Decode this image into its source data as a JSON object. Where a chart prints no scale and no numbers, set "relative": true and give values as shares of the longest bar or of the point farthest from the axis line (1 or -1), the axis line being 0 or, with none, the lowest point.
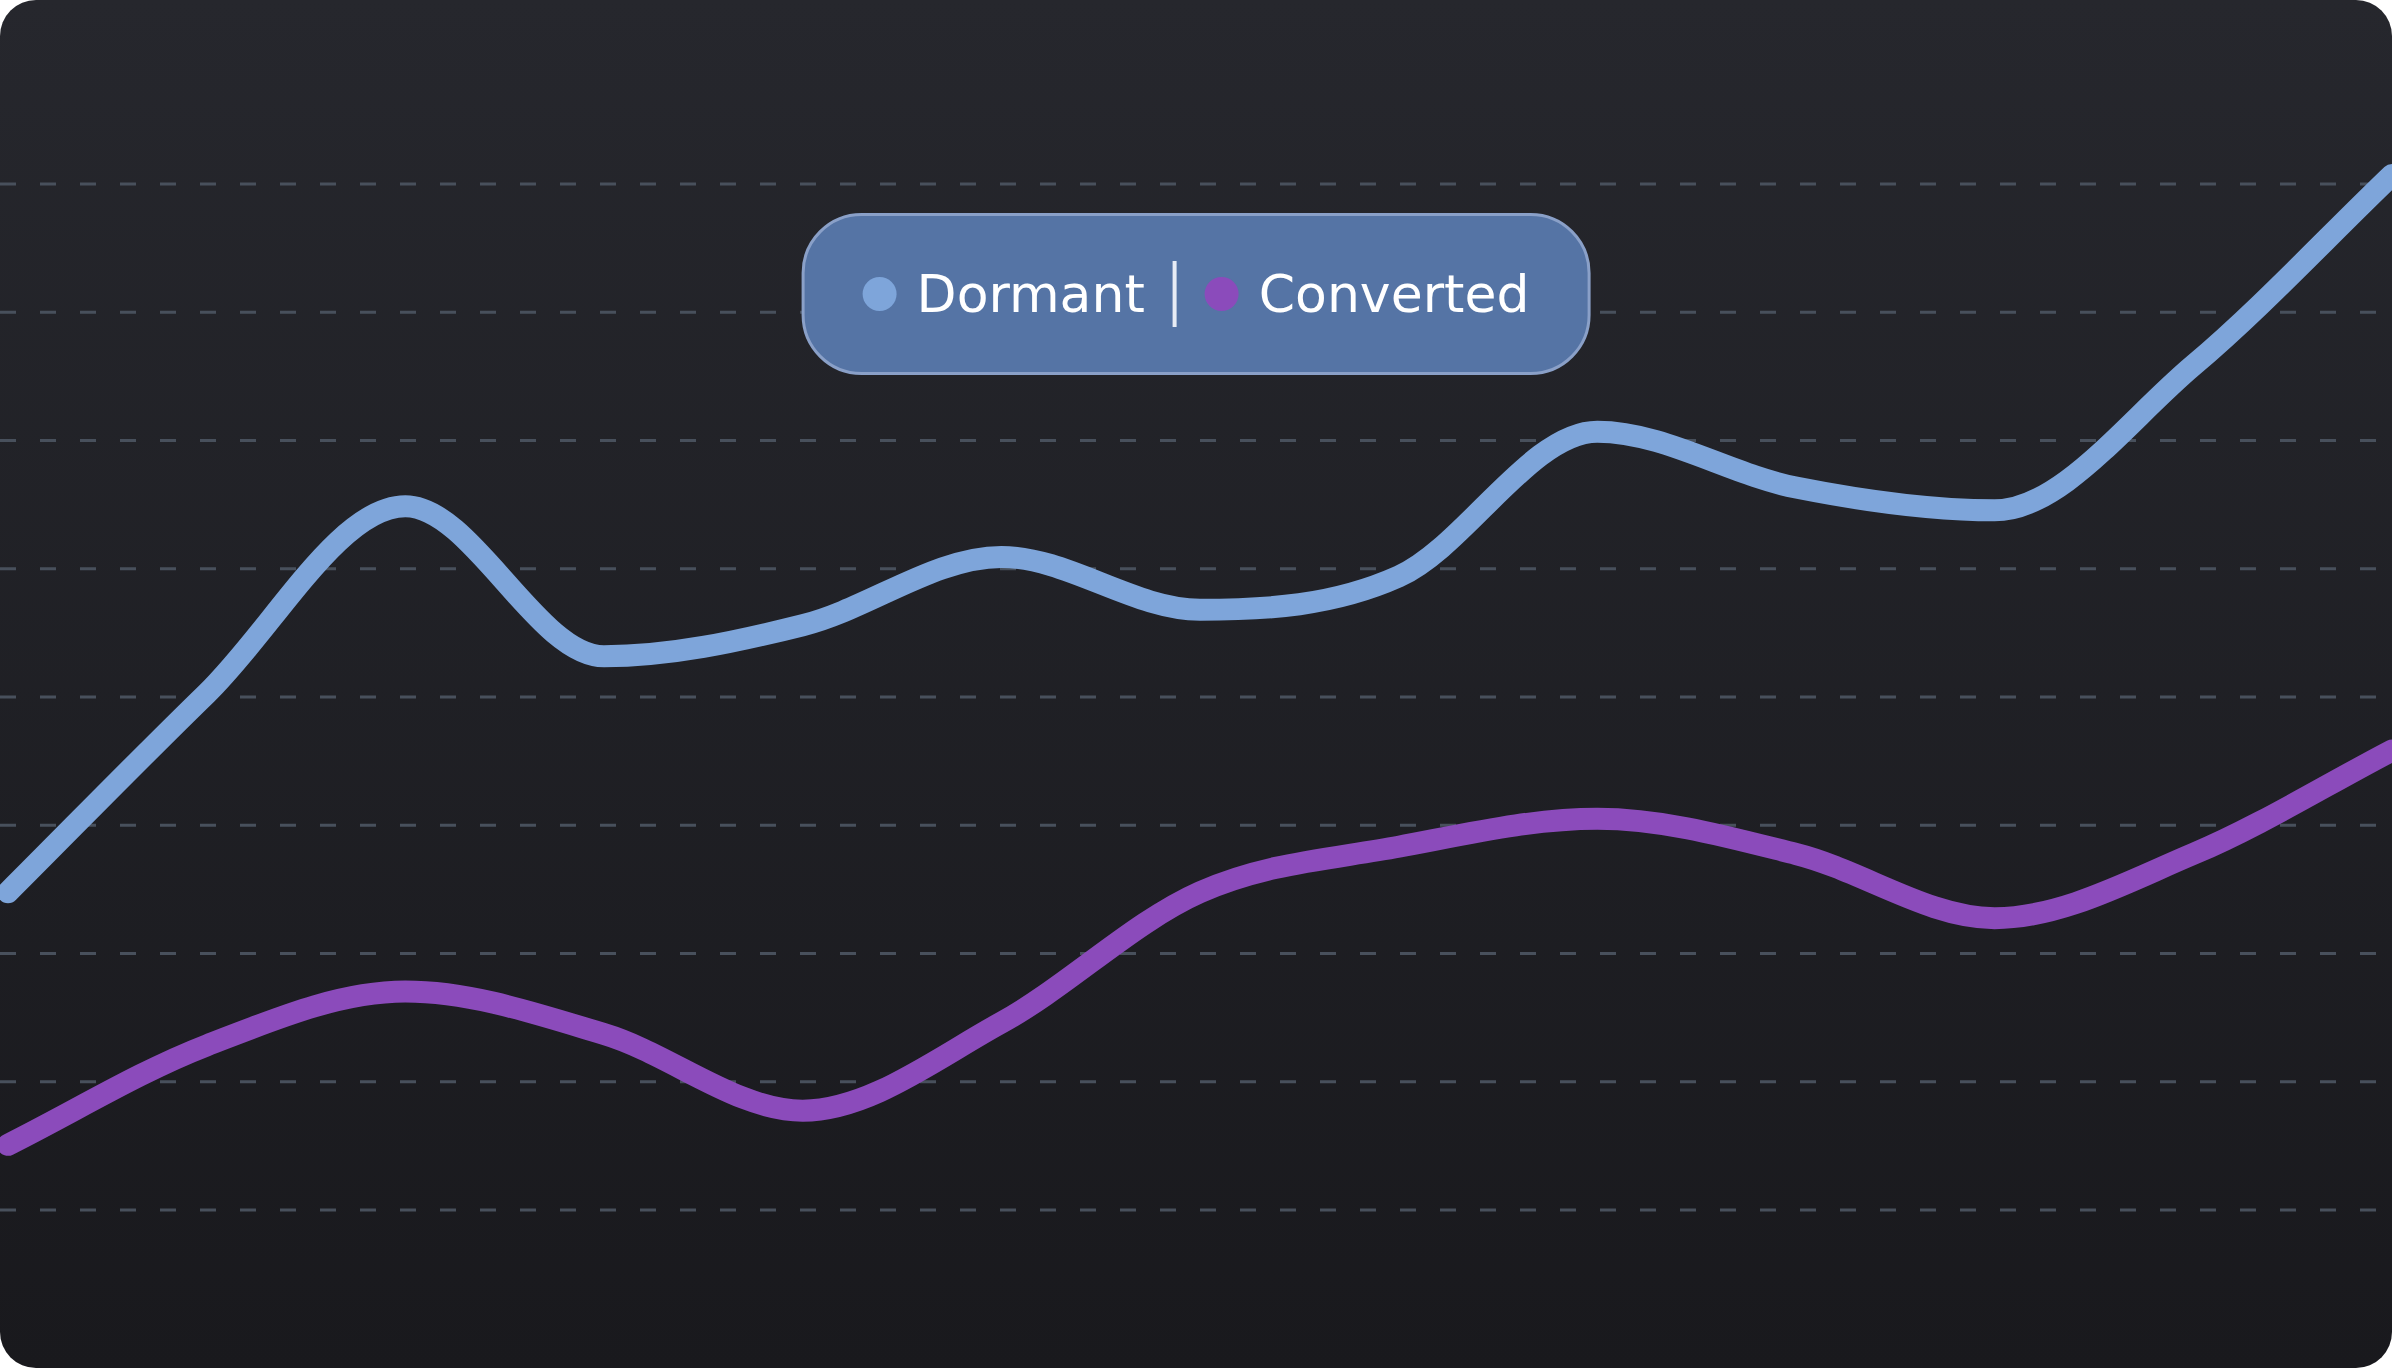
{
  "chart_data": {
    "type": "line",
    "relative": true,
    "grid": true,
    "legend": "top",
    "marker": "none",
    "line_style": "solid",
    "categories": [
      null,
      null,
      null,
      null,
      null,
      null,
      null,
      null,
      null,
      null,
      null,
      null,
      null
    ],
    "series": [
      {
        "name": "Dormant",
        "color": "#7ea5da",
        "values": [
          0.307,
          0.499,
          0.68,
          0.535,
          0.565,
          0.631,
          0.58,
          0.612,
          0.752,
          0.698,
          0.676,
          0.816,
          1
        ]
      },
      {
        "name": "Converted",
        "color": "#8b4bbb",
        "values": [
          0.063,
          0.159,
          0.211,
          0.17,
          0.096,
          0.181,
          0.307,
          0.351,
          0.378,
          0.344,
          0.282,
          0.344,
          0.444
        ]
      }
    ]
  }
}
